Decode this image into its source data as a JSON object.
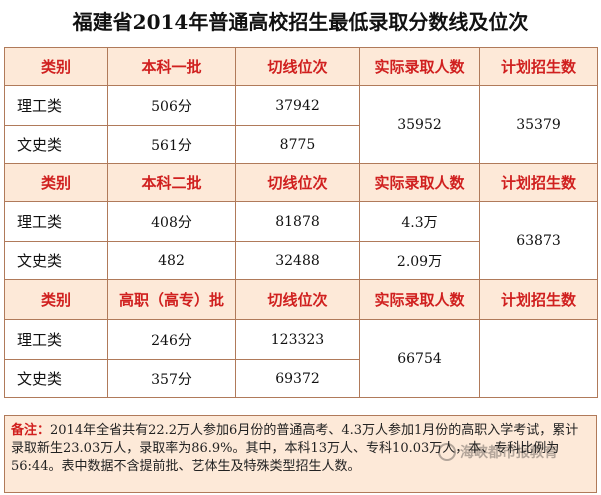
{
  "title": "福建省2014年普通高校招生最低录取分数线及位次",
  "blocks": [
    {
      "headers": [
        "类别",
        "本科一批",
        "切线位次",
        "实际录取人数",
        "计划招生数"
      ],
      "rows": [
        {
          "category": "理工类",
          "score": "506分",
          "rank": "37942"
        },
        {
          "category": "文史类",
          "score": "561分",
          "rank": "8775"
        }
      ],
      "actual_merged": "35952",
      "plan_merged": "35379"
    },
    {
      "headers": [
        "类别",
        "本科二批",
        "切线位次",
        "实际录取人数",
        "计划招生数"
      ],
      "rows": [
        {
          "category": "理工类",
          "score": "408分",
          "rank": "81878",
          "actual": "4.3万"
        },
        {
          "category": "文史类",
          "score": "482",
          "rank": "32488",
          "actual": "2.09万"
        }
      ],
      "plan_merged": "63873"
    },
    {
      "headers": [
        "类别",
        "高职（高专）批",
        "切线位次",
        "实际录取人数",
        "计划招生数"
      ],
      "rows": [
        {
          "category": "理工类",
          "score": "246分",
          "rank": "123323"
        },
        {
          "category": "文史类",
          "score": "357分",
          "rank": "69372"
        }
      ],
      "actual_merged": "66754",
      "plan_merged": ""
    }
  ],
  "note": {
    "label": "备注：",
    "text": "2014年全省共有22.2万人参加6月份的普通高考、4.3万人参加1月份的高职入学考试，累计录取新生23.03万人，录取率为86.9%。其中，本科13万人、专科10.03万人，本、专科比例为56:44。表中数据不含提前批、艺体生及特殊类型招生人数。"
  },
  "watermark": {
    "text": "海峡都市报教育",
    "icon": "wechat-icon"
  },
  "colors": {
    "header_bg": "#fde9d8",
    "header_text": "#d0201f",
    "border": "#b07a5a"
  }
}
